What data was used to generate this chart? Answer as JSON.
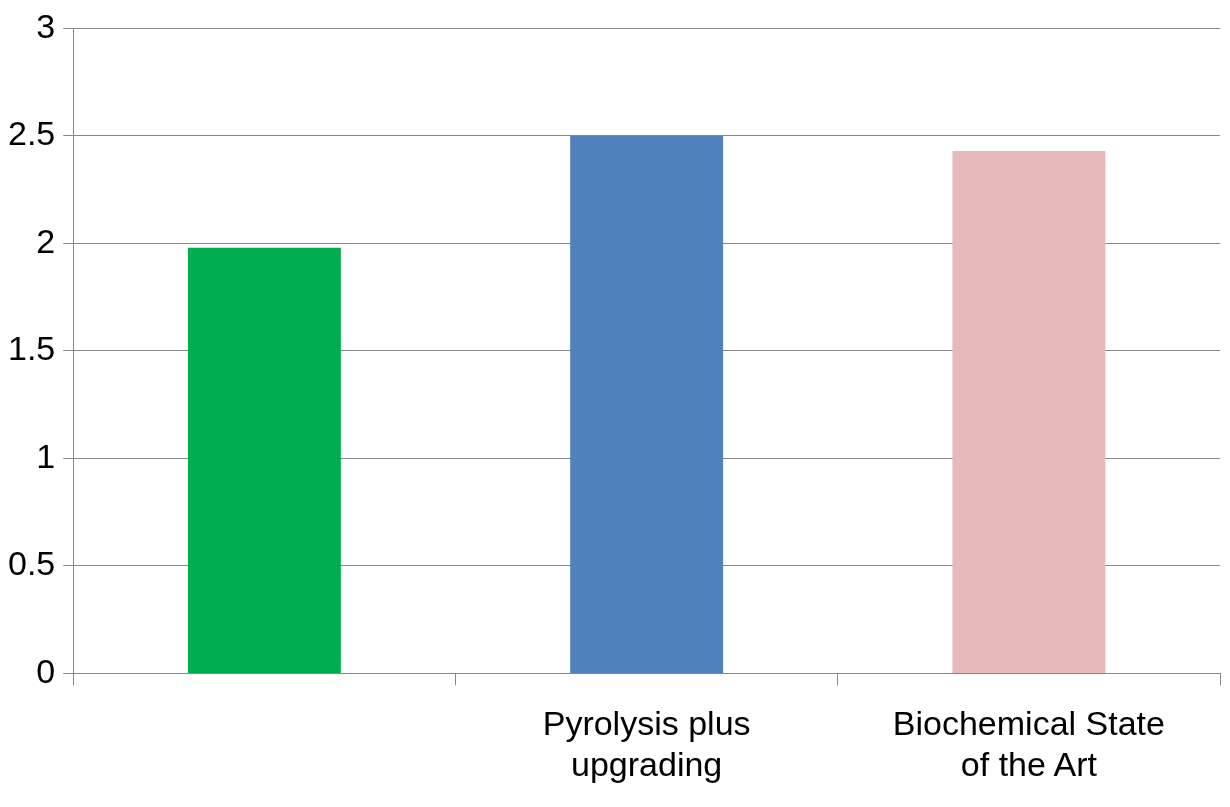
{
  "chart_data": {
    "type": "bar",
    "categories": [
      null,
      "Pyrolysis plus upgrading",
      "Biochemical State of the Art"
    ],
    "values": [
      1.98,
      2.5,
      2.43
    ],
    "colors": [
      "#00ad4e",
      "#4f81bd",
      "#e6b8b7"
    ],
    "ylim": [
      0,
      3
    ],
    "yticks": [
      0,
      0.5,
      1,
      1.5,
      2,
      2.5,
      3
    ],
    "grid": "y",
    "legend": false
  }
}
